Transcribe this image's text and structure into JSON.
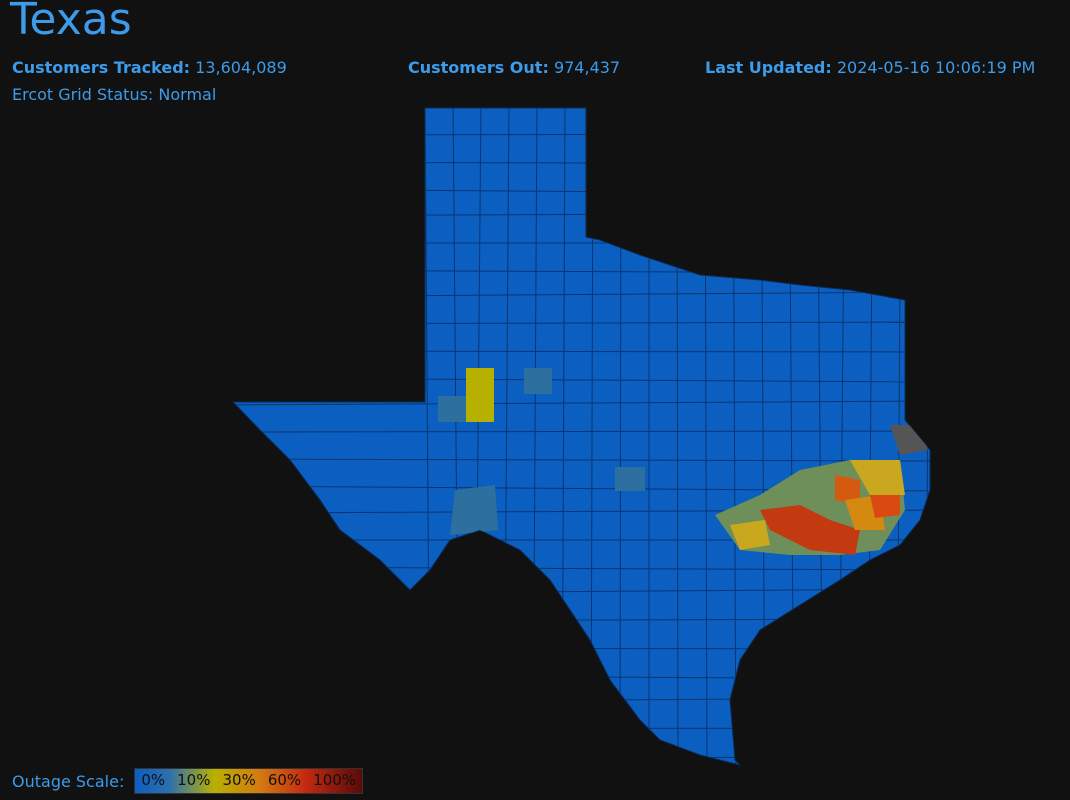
{
  "header": {
    "title": "Texas",
    "customers_tracked_label": "Customers Tracked:",
    "customers_tracked": "13,604,089",
    "customers_out_label": "Customers Out:",
    "customers_out": "974,437",
    "last_updated_label": "Last Updated:",
    "last_updated": "2024-05-16 10:06:19 PM",
    "grid_status": "Ercot Grid Status: Normal"
  },
  "legend": {
    "label": "Outage Scale:",
    "stops": [
      "0%",
      "10%",
      "30%",
      "60%",
      "100%"
    ]
  }
}
